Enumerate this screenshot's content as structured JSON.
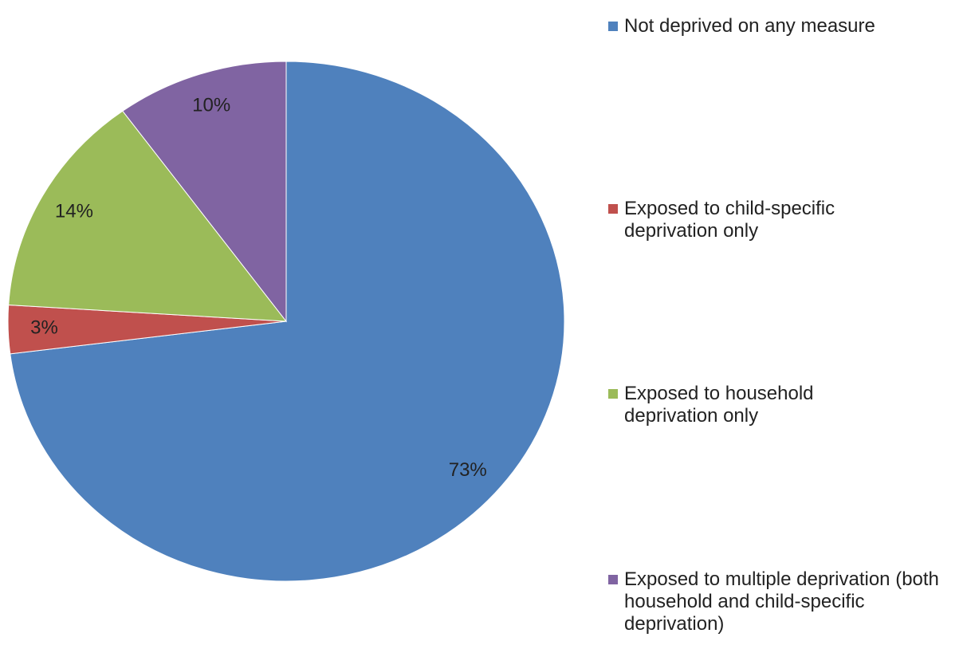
{
  "chart_data": {
    "type": "pie",
    "categories": [
      "Not deprived on any measure",
      "Exposed to child-specific deprivation only",
      "Exposed to household deprivation only",
      "Exposed to multiple deprivation (both household and child-specific deprivation)"
    ],
    "values": [
      73,
      3,
      14,
      10
    ],
    "value_labels": [
      "73%",
      "3%",
      "14%",
      "10%"
    ],
    "colors": [
      "#4f81bd",
      "#c0504d",
      "#9bbb59",
      "#8064a2"
    ],
    "legend": "right"
  }
}
